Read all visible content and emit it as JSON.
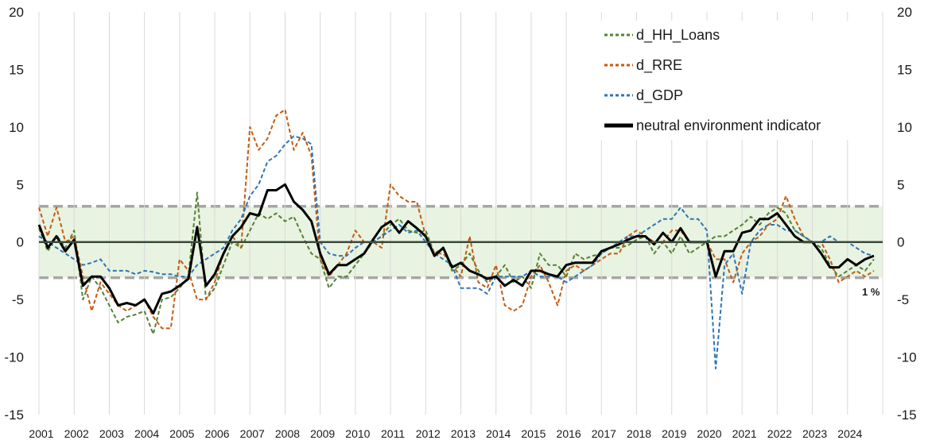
{
  "chart_data": {
    "type": "line",
    "title": "",
    "xlabel": "",
    "ylabel": "",
    "ylim": [
      -15,
      20
    ],
    "xlim": [
      2001.0,
      2025.0
    ],
    "yticks": [
      -15,
      -10,
      -5,
      0,
      5,
      10,
      15,
      20
    ],
    "xtick_labels": [
      "2001",
      "2002",
      "2003",
      "2004",
      "2005",
      "2006",
      "2007",
      "2008",
      "2009",
      "2010",
      "2011",
      "2012",
      "2013",
      "2014",
      "2015",
      "2016",
      "2017",
      "2018",
      "2019",
      "2020",
      "2021",
      "2022",
      "2023",
      "2024"
    ],
    "band": {
      "lower": -3.1,
      "upper": 3.1,
      "fill": "#e9f3e1",
      "line_color": "#a6a6a6"
    },
    "annotation": {
      "text": "1 %"
    },
    "grid": "vertical",
    "legend_position": "top-right",
    "series": [
      {
        "name": "d_HH_Loans",
        "color": "#548235",
        "style": "dashed",
        "width": 2,
        "x": [
          2001.0,
          2001.25,
          2001.5,
          2001.75,
          2002.0,
          2002.25,
          2002.5,
          2002.75,
          2003.0,
          2003.25,
          2003.5,
          2003.75,
          2004.0,
          2004.25,
          2004.5,
          2004.75,
          2005.0,
          2005.25,
          2005.5,
          2005.75,
          2006.0,
          2006.25,
          2006.5,
          2006.75,
          2007.0,
          2007.25,
          2007.5,
          2007.75,
          2008.0,
          2008.25,
          2008.5,
          2008.75,
          2009.0,
          2009.25,
          2009.5,
          2009.75,
          2010.0,
          2010.25,
          2010.5,
          2010.75,
          2011.0,
          2011.25,
          2011.5,
          2011.75,
          2012.0,
          2012.25,
          2012.5,
          2012.75,
          2013.0,
          2013.25,
          2013.5,
          2013.75,
          2014.0,
          2014.25,
          2014.5,
          2014.75,
          2015.0,
          2015.25,
          2015.5,
          2015.75,
          2016.0,
          2016.25,
          2016.5,
          2016.75,
          2017.0,
          2017.25,
          2017.5,
          2017.75,
          2018.0,
          2018.25,
          2018.5,
          2018.75,
          2019.0,
          2019.25,
          2019.5,
          2019.75,
          2020.0,
          2020.25,
          2020.5,
          2020.75,
          2021.0,
          2021.25,
          2021.5,
          2021.75,
          2022.0,
          2022.25,
          2022.5,
          2022.75,
          2023.0,
          2023.25,
          2023.5,
          2023.75,
          2024.0,
          2024.25,
          2024.5,
          2024.75
        ],
        "values": [
          1.2,
          -0.8,
          0.6,
          -0.5,
          1.0,
          -5.0,
          -3.0,
          -4.0,
          -5.5,
          -7.0,
          -6.5,
          -6.3,
          -6.0,
          -8.0,
          -5.0,
          -4.8,
          -4.0,
          -3.0,
          4.3,
          -5.0,
          -4.0,
          -2.0,
          0.0,
          -0.5,
          1.0,
          2.5,
          2.0,
          2.5,
          1.8,
          2.2,
          0.5,
          -1.0,
          -1.5,
          -4.0,
          -3.0,
          -3.0,
          -2.0,
          -1.0,
          0.0,
          0.5,
          1.5,
          2.0,
          1.0,
          0.8,
          1.0,
          -1.0,
          -0.5,
          -2.5,
          -2.0,
          -1.0,
          -2.5,
          -3.5,
          -3.0,
          -2.0,
          -3.5,
          -3.0,
          -4.0,
          -1.0,
          -2.0,
          -2.0,
          -3.0,
          -1.0,
          -1.5,
          -1.2,
          -1.0,
          -0.5,
          -0.5,
          -0.3,
          0.2,
          0.5,
          -1.0,
          0.0,
          -1.0,
          0.5,
          -1.0,
          -0.5,
          0.0,
          0.5,
          0.5,
          1.0,
          1.5,
          2.2,
          1.5,
          2.5,
          3.0,
          2.5,
          1.0,
          0.5,
          0.0,
          -0.5,
          -2.0,
          -3.0,
          -2.5,
          -2.0,
          -2.5,
          -1.5
        ]
      },
      {
        "name": "d_RRE",
        "color": "#c55a11",
        "style": "dashed",
        "width": 2,
        "x": [
          2001.0,
          2001.25,
          2001.5,
          2001.75,
          2002.0,
          2002.25,
          2002.5,
          2002.75,
          2003.0,
          2003.25,
          2003.5,
          2003.75,
          2004.0,
          2004.25,
          2004.5,
          2004.75,
          2005.0,
          2005.25,
          2005.5,
          2005.75,
          2006.0,
          2006.25,
          2006.5,
          2006.75,
          2007.0,
          2007.25,
          2007.5,
          2007.75,
          2008.0,
          2008.25,
          2008.5,
          2008.75,
          2009.0,
          2009.25,
          2009.5,
          2009.75,
          2010.0,
          2010.25,
          2010.5,
          2010.75,
          2011.0,
          2011.25,
          2011.5,
          2011.75,
          2012.0,
          2012.25,
          2012.5,
          2012.75,
          2013.0,
          2013.25,
          2013.5,
          2013.75,
          2014.0,
          2014.25,
          2014.5,
          2014.75,
          2015.0,
          2015.25,
          2015.5,
          2015.75,
          2016.0,
          2016.25,
          2016.5,
          2016.75,
          2017.0,
          2017.25,
          2017.5,
          2017.75,
          2018.0,
          2018.25,
          2018.5,
          2018.75,
          2019.0,
          2019.25,
          2019.5,
          2019.75,
          2020.0,
          2020.25,
          2020.5,
          2020.75,
          2021.0,
          2021.25,
          2021.5,
          2021.75,
          2022.0,
          2022.25,
          2022.5,
          2022.75,
          2023.0,
          2023.25,
          2023.5,
          2023.75,
          2024.0,
          2024.25,
          2024.5,
          2024.75
        ],
        "values": [
          3.0,
          0.5,
          3.0,
          0.0,
          0.5,
          -3.0,
          -6.0,
          -3.5,
          -4.5,
          -5.5,
          -6.0,
          -5.5,
          -5.0,
          -6.5,
          -7.5,
          -7.5,
          -1.5,
          -2.5,
          -5.0,
          -5.0,
          -3.5,
          -1.0,
          0.5,
          -0.5,
          10.0,
          8.0,
          9.0,
          11.0,
          11.5,
          8.0,
          9.5,
          7.5,
          -1.5,
          -3.0,
          -2.0,
          -1.0,
          1.0,
          0.0,
          0.0,
          -0.5,
          5.0,
          4.0,
          3.5,
          3.5,
          0.5,
          -1.0,
          -1.0,
          -2.0,
          -3.0,
          0.5,
          -3.5,
          -4.0,
          -2.0,
          -5.5,
          -6.0,
          -5.5,
          -3.0,
          -2.0,
          -3.5,
          -5.5,
          -2.5,
          -2.0,
          -2.5,
          -2.0,
          -1.5,
          -1.0,
          -1.0,
          0.5,
          1.0,
          0.5,
          0.0,
          0.0,
          1.0,
          1.0,
          0.0,
          0.0,
          0.0,
          -1.5,
          -1.5,
          -3.5,
          -1.0,
          0.0,
          0.5,
          1.5,
          2.0,
          4.0,
          2.0,
          0.5,
          0.0,
          0.0,
          -1.5,
          -3.5,
          -3.0,
          -2.5,
          -3.0,
          -2.5
        ]
      },
      {
        "name": "d_GDP",
        "color": "#2e75b6",
        "style": "dashed",
        "width": 2,
        "x": [
          2001.0,
          2001.25,
          2001.5,
          2001.75,
          2002.0,
          2002.25,
          2002.5,
          2002.75,
          2003.0,
          2003.25,
          2003.5,
          2003.75,
          2004.0,
          2004.25,
          2004.5,
          2004.75,
          2005.0,
          2005.25,
          2005.5,
          2005.75,
          2006.0,
          2006.25,
          2006.5,
          2006.75,
          2007.0,
          2007.25,
          2007.5,
          2007.75,
          2008.0,
          2008.25,
          2008.5,
          2008.75,
          2009.0,
          2009.25,
          2009.5,
          2009.75,
          2010.0,
          2010.25,
          2010.5,
          2010.75,
          2011.0,
          2011.25,
          2011.5,
          2011.75,
          2012.0,
          2012.25,
          2012.5,
          2012.75,
          2013.0,
          2013.25,
          2013.5,
          2013.75,
          2014.0,
          2014.25,
          2014.5,
          2014.75,
          2015.0,
          2015.25,
          2015.5,
          2015.75,
          2016.0,
          2016.25,
          2016.5,
          2016.75,
          2017.0,
          2017.25,
          2017.5,
          2017.75,
          2018.0,
          2018.25,
          2018.5,
          2018.75,
          2019.0,
          2019.25,
          2019.5,
          2019.75,
          2020.0,
          2020.25,
          2020.5,
          2020.75,
          2021.0,
          2021.25,
          2021.5,
          2021.75,
          2022.0,
          2022.25,
          2022.5,
          2022.75,
          2023.0,
          2023.25,
          2023.5,
          2023.75,
          2024.0,
          2024.25,
          2024.5,
          2024.75
        ],
        "values": [
          0.5,
          0.0,
          -0.5,
          -1.0,
          -1.5,
          -2.0,
          -1.8,
          -1.5,
          -2.5,
          -2.5,
          -2.5,
          -2.8,
          -2.5,
          -2.6,
          -2.8,
          -2.8,
          -3.0,
          -3.0,
          -2.0,
          -1.5,
          -1.0,
          -0.5,
          1.0,
          2.0,
          4.0,
          5.0,
          7.0,
          7.5,
          8.5,
          9.2,
          9.0,
          8.5,
          0.0,
          -1.0,
          -1.2,
          -1.2,
          -0.5,
          0.0,
          0.0,
          0.5,
          1.0,
          1.5,
          0.8,
          1.0,
          0.0,
          -1.0,
          -1.5,
          -2.0,
          -4.0,
          -4.0,
          -4.0,
          -4.5,
          -3.0,
          -3.0,
          -3.0,
          -3.0,
          -2.5,
          -3.0,
          -3.0,
          -3.0,
          -3.5,
          -3.0,
          -2.5,
          -2.0,
          -1.0,
          -0.5,
          0.0,
          0.5,
          0.5,
          1.0,
          1.5,
          2.0,
          2.0,
          3.0,
          2.0,
          2.0,
          1.0,
          -11.0,
          -2.0,
          -1.0,
          -4.5,
          0.0,
          1.0,
          1.5,
          1.5,
          1.0,
          1.0,
          0.5,
          0.0,
          0.0,
          0.5,
          0.0,
          0.0,
          -0.5,
          -1.0,
          -1.2
        ]
      },
      {
        "name": "neutral environment indicator",
        "color": "#000000",
        "style": "solid",
        "width": 3,
        "x": [
          2001.0,
          2001.25,
          2001.5,
          2001.75,
          2002.0,
          2002.25,
          2002.5,
          2002.75,
          2003.0,
          2003.25,
          2003.5,
          2003.75,
          2004.0,
          2004.25,
          2004.5,
          2004.75,
          2005.0,
          2005.25,
          2005.5,
          2005.75,
          2006.0,
          2006.25,
          2006.5,
          2006.75,
          2007.0,
          2007.25,
          2007.5,
          2007.75,
          2008.0,
          2008.25,
          2008.5,
          2008.75,
          2009.0,
          2009.25,
          2009.5,
          2009.75,
          2010.0,
          2010.25,
          2010.5,
          2010.75,
          2011.0,
          2011.25,
          2011.5,
          2011.75,
          2012.0,
          2012.25,
          2012.5,
          2012.75,
          2013.0,
          2013.25,
          2013.5,
          2013.75,
          2014.0,
          2014.25,
          2014.5,
          2014.75,
          2015.0,
          2015.25,
          2015.5,
          2015.75,
          2016.0,
          2016.25,
          2016.5,
          2016.75,
          2017.0,
          2017.25,
          2017.5,
          2017.75,
          2018.0,
          2018.25,
          2018.5,
          2018.75,
          2019.0,
          2019.25,
          2019.5,
          2019.75,
          2020.0,
          2020.25,
          2020.5,
          2020.75,
          2021.0,
          2021.25,
          2021.5,
          2021.75,
          2022.0,
          2022.25,
          2022.5,
          2022.75,
          2023.0,
          2023.25,
          2023.5,
          2023.75,
          2024.0,
          2024.25,
          2024.5,
          2024.75
        ],
        "values": [
          1.5,
          -0.5,
          0.5,
          -0.8,
          0.2,
          -3.8,
          -3.0,
          -3.0,
          -4.0,
          -5.5,
          -5.3,
          -5.5,
          -5.0,
          -6.2,
          -4.5,
          -4.3,
          -3.8,
          -3.2,
          1.3,
          -3.8,
          -2.8,
          -1.0,
          0.5,
          1.3,
          2.5,
          2.3,
          4.5,
          4.5,
          5.0,
          3.5,
          2.8,
          1.8,
          -1.0,
          -2.8,
          -2.0,
          -2.0,
          -1.5,
          -1.0,
          0.2,
          1.3,
          1.8,
          0.8,
          1.8,
          1.2,
          0.5,
          -1.2,
          -0.5,
          -2.2,
          -1.8,
          -2.5,
          -2.8,
          -3.2,
          -3.0,
          -3.8,
          -3.3,
          -3.8,
          -2.5,
          -2.5,
          -2.8,
          -3.0,
          -2.0,
          -1.8,
          -1.8,
          -1.8,
          -0.8,
          -0.5,
          -0.2,
          0.2,
          0.5,
          0.5,
          -0.2,
          0.8,
          0.0,
          1.2,
          0.0,
          0.0,
          0.0,
          -3.0,
          -0.8,
          -0.8,
          0.8,
          1.0,
          2.0,
          2.0,
          2.5,
          1.5,
          0.5,
          0.0,
          0.0,
          -1.0,
          -2.2,
          -2.2,
          -1.5,
          -2.0,
          -1.5,
          -1.2
        ]
      }
    ]
  }
}
